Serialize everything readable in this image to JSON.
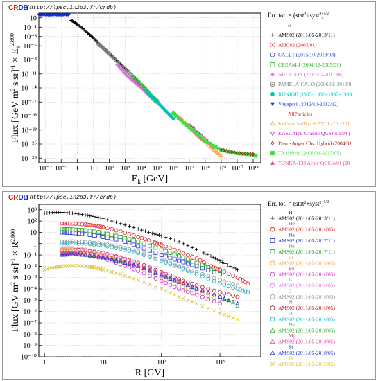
{
  "header": {
    "logo_cr": "CR",
    "logo_db": "DB",
    "url": "(http://lpsc.in2p3.fr/crdb)"
  },
  "colors": {
    "logo_cr": "#d42020",
    "logo_db": "#1f3fbf"
  },
  "chart_data": [
    {
      "type": "scatter",
      "xlabel": "E_k [GeV]",
      "ylabel": "Flux [GeV m^2 s sr]^-1 × E_k^2.800",
      "xscale": "log",
      "yscale": "log",
      "xlim": [
        0.004,
        300000000000
      ],
      "ylim": [
        1e-30,
        100
      ],
      "x_ticks": [
        "10⁻²",
        "10⁻¹",
        "1",
        "10",
        "10²",
        "10³",
        "10⁴",
        "10⁵",
        "10⁶",
        "10⁷",
        "10⁸",
        "10⁹",
        "10¹⁰",
        "10¹¹"
      ],
      "y_ticks": [
        "10",
        "10⁻¹",
        "10⁻³",
        "10⁻⁵",
        "10⁻⁸",
        "10⁻¹¹",
        "10⁻¹⁴",
        "10⁻¹⁷",
        "10⁻²⁰",
        "10⁻²³",
        "10⁻²⁶",
        "10⁻²⁹"
      ],
      "legend_header": "Err. tot. = (stat²+syst²)^1/2",
      "legend": [
        {
          "kind": "group",
          "name": "H",
          "color": "#000000"
        },
        {
          "kind": "series",
          "name": "AMS02 (2011/05-2013/11)",
          "symbol": "+",
          "color": "#000000"
        },
        {
          "kind": "series",
          "name": "ATIC02 (2003/01)",
          "symbol": "x",
          "color": "#e03030"
        },
        {
          "kind": "series",
          "name": "CALET (2015/10-2018/08)",
          "symbol": "circle",
          "color": "#2040d0"
        },
        {
          "kind": "series",
          "name": "CREAM-I (2004/12-2005/01)",
          "symbol": "square",
          "color": "#20b020"
        },
        {
          "kind": "series",
          "name": "NUCLEON (2015/07-2017/06)",
          "symbol": "star",
          "color": "#e060e0"
        },
        {
          "kind": "series",
          "name": "PAMELA-CALO (2006/06-2010/0",
          "symbol": "circle-cross",
          "color": "#808080"
        },
        {
          "kind": "series",
          "name": "RUNJOB (1995+1996+1997+1999",
          "symbol": "disc",
          "color": "#00c0c0"
        },
        {
          "kind": "series",
          "name": "Voyager1 (2012/10-2012/12)",
          "symbol": "triangle-down-filled",
          "color": "#1030d0"
        },
        {
          "kind": "group",
          "name": "AllParticles",
          "color": "#e03030"
        },
        {
          "kind": "series",
          "name": "IceCube IceTop SIBYLL-2.1 (201",
          "symbol": "triangle",
          "color": "#f0a040"
        },
        {
          "kind": "series",
          "name": "KASCADE-Grande QGSJetII.04 (",
          "symbol": "triangle-down",
          "color": "#c020c0"
        },
        {
          "kind": "series",
          "name": "Pierre Auger Obs. Hybrid (2004/01",
          "symbol": "diamond",
          "color": "#a01010"
        },
        {
          "kind": "series",
          "name": "TA Hybrid (2008/01-2015/05)",
          "symbol": "square-filled",
          "color": "#40e040"
        },
        {
          "kind": "series",
          "name": "TUNKA-133 Array QGSJet01 (20",
          "symbol": "triangle-filled",
          "color": "#f04080"
        }
      ],
      "series": [
        {
          "name": "Voyager1 (2012/10-2012/12)",
          "x": [
            0.004,
            0.006,
            0.01,
            0.015,
            0.02,
            0.03,
            0.05,
            0.08,
            0.12,
            0.2,
            0.3
          ],
          "y": [
            40,
            40,
            40,
            40,
            40,
            40,
            40,
            40,
            40,
            40,
            40
          ]
        },
        {
          "name": "AMS02 (2011/05-2013/11)",
          "x": [
            0.4,
            0.7,
            1,
            2,
            4,
            7,
            10,
            20,
            40,
            70,
            100,
            200,
            400,
            700,
            1000,
            1500
          ],
          "y": [
            3,
            1,
            0.4,
            0.07,
            0.008,
            0.0015,
            0.0005,
            5e-05,
            5e-06,
            1e-06,
            3e-07,
            3e-08,
            3e-09,
            5e-10,
            1.5e-10,
            5e-11
          ]
        },
        {
          "name": "PAMELA-CALO (2006/06-2010/0",
          "x": [
            20,
            50,
            100,
            300,
            1000,
            3000,
            8000
          ],
          "y": [
            3e-05,
            2e-06,
            2e-07,
            6e-09,
            1e-10,
            3e-12,
            1e-13
          ]
        },
        {
          "name": "CREAM-I (2004/12-2005/01)",
          "x": [
            3000,
            8000,
            20000,
            50000,
            100000
          ],
          "y": [
            2e-12,
            8e-14,
            3e-15,
            1e-16,
            1.2e-17
          ]
        },
        {
          "name": "NUCLEON (2015/07-2017/06)",
          "x": [
            300,
            1000,
            3000,
            10000,
            30000,
            100000
          ],
          "y": [
            1e-09,
            1e-11,
            3e-13,
            1e-14,
            3e-16,
            1e-17
          ]
        },
        {
          "name": "RUNJOB (1995+1996+1997+1999",
          "x": [
            20000,
            50000,
            100000,
            300000,
            1000000
          ],
          "y": [
            3e-15,
            1e-16,
            1e-17,
            2e-19,
            3e-21
          ]
        },
        {
          "name": "KASCADE-Grande QGSJetII.04 (",
          "x": [
            10000000,
            30000000,
            100000000,
            300000000
          ],
          "y": [
            1e-22,
            3e-24,
            8e-26,
            2e-27
          ]
        },
        {
          "name": "TUNKA-133 Array QGSJet01 (20",
          "x": [
            1000000,
            3000000,
            10000000,
            30000000,
            100000000
          ],
          "y": [
            1e-19,
            2e-21,
            5e-23,
            1e-24,
            3e-26
          ]
        },
        {
          "name": "IceCube IceTop SIBYLL-2.1 (201",
          "x": [
            3000000,
            10000000,
            30000000,
            100000000,
            300000000,
            1000000000
          ],
          "y": [
            3e-21,
            6e-23,
            1.5e-24,
            4e-26,
            1e-27,
            3e-29
          ]
        },
        {
          "name": "TA Hybrid (2008/01-2015/05)",
          "x": [
            1000000,
            10000000,
            100000000,
            1000000000,
            10000000000,
            100000000000,
            150000000000
          ],
          "y": [
            3e-20,
            4e-23,
            5e-26,
            5e-28,
            1e-28,
            5e-29,
            3e-29
          ]
        },
        {
          "name": "Pierre Auger Obs. Hybrid (2004/01",
          "x": [
            1000000000,
            10000000000,
            100000000000
          ],
          "y": [
            6e-28,
            1.2e-28,
            7e-29
          ]
        }
      ]
    },
    {
      "type": "scatter",
      "xlabel": "R [GV]",
      "ylabel": "Flux [GV m^2 s sr]^-1 × R^2.800",
      "xscale": "log",
      "yscale": "log",
      "xlim": [
        0.8,
        5000
      ],
      "ylim": [
        1e-10,
        3000
      ],
      "x_ticks": [
        "1",
        "10",
        "10²",
        "10³"
      ],
      "y_ticks": [
        "10³",
        "10²",
        "10",
        "1",
        "10⁻¹",
        "10⁻²",
        "10⁻³",
        "10⁻⁴",
        "10⁻⁵",
        "10⁻⁶",
        "10⁻⁷",
        "10⁻⁸",
        "10⁻⁹",
        "10⁻¹⁰"
      ],
      "legend_header": "Err. tot. = (stat²+syst²)^1/2",
      "legend": [
        {
          "group": "H",
          "name": "AMS02 (2011/05-2013/11)",
          "symbol": "+",
          "color": "#000000"
        },
        {
          "group": "He",
          "name": "AMS02 (2011/05-2016/05)",
          "symbol": "circle",
          "color": "#e02020"
        },
        {
          "group": "He",
          "name": "AMS02 (2011/05-2017/11)",
          "symbol": "square",
          "color": "#2030e0"
        },
        {
          "group": "He",
          "name": "AMS02 (2011/05-2017/11)",
          "symbol": "square",
          "color": "#20a020"
        },
        {
          "group": "Li",
          "name": "AMS02 (2011/05-2016/05)",
          "symbol": "circle",
          "color": "#f0a040"
        },
        {
          "group": "Be",
          "name": "AMS02 (2011/05-2016/05)",
          "symbol": "circle",
          "color": "#d020d0"
        },
        {
          "group": "B",
          "name": "AMS02 (2011/05-2016/05)",
          "symbol": "circle",
          "color": "#e070e0"
        },
        {
          "group": "C",
          "name": "AMS02 (2011/05-2016/05)",
          "symbol": "circle",
          "color": "#909090"
        },
        {
          "group": "N",
          "name": "AMS02 (2011/05-2016/05)",
          "symbol": "circle",
          "color": "#b01010"
        },
        {
          "group": "O",
          "name": "AMS02 (2011/05-2016/05)",
          "symbol": "circle",
          "color": "#10b0c0"
        },
        {
          "group": "Ne",
          "name": "AMS02 (2011/05-2018/05)",
          "symbol": "triangle",
          "color": "#20b020"
        },
        {
          "group": "Mg",
          "name": "AMS02 (2011/05-2018/05)",
          "symbol": "triangle",
          "color": "#e040a0"
        },
        {
          "group": "Si",
          "name": "AMS02 (2011/05-2018/05)",
          "symbol": "triangle",
          "color": "#2030d0"
        },
        {
          "group": "Fe",
          "name": "AMS02 (2011/05-2015/05)",
          "symbol": "x",
          "color": "#d8c020"
        }
      ],
      "series": [
        {
          "name": "H",
          "x": [
            1,
            1.5,
            2,
            3,
            5,
            7,
            10,
            20,
            40,
            70,
            100,
            200,
            400,
            700,
            1000,
            1500,
            2000
          ],
          "y": [
            500,
            600,
            600,
            500,
            350,
            250,
            170,
            60,
            20,
            8,
            5,
            1.5,
            0.3,
            0.08,
            0.03,
            0.01,
            0.005
          ]
        },
        {
          "name": "He (red)",
          "x": [
            2,
            3,
            5,
            7,
            10,
            20,
            40,
            70,
            100,
            200,
            400,
            700,
            1000,
            2000,
            3000
          ],
          "y": [
            60,
            60,
            50,
            40,
            30,
            12,
            4,
            1.5,
            0.8,
            0.2,
            0.05,
            0.01,
            0.005,
            0.001,
            0.0003
          ]
        },
        {
          "name": "He (blue)",
          "x": [
            2,
            3,
            5,
            10,
            20,
            40,
            100,
            200,
            400,
            1000
          ],
          "y": [
            10,
            9,
            7,
            4,
            2,
            0.6,
            0.1,
            0.03,
            0.01,
            0.002
          ]
        },
        {
          "name": "He (green)",
          "x": [
            2,
            3,
            5,
            10,
            20,
            40,
            100,
            200,
            400,
            1000
          ],
          "y": [
            20,
            18,
            15,
            9,
            4,
            1.5,
            0.3,
            0.08,
            0.02,
            0.004
          ]
        },
        {
          "name": "C",
          "x": [
            2,
            3,
            5,
            10,
            20,
            40,
            100,
            200,
            400,
            1000,
            2000
          ],
          "y": [
            1.5,
            1.6,
            1.4,
            1,
            0.5,
            0.2,
            0.04,
            0.01,
            0.003,
            0.0006,
            0.0002
          ]
        },
        {
          "name": "O",
          "x": [
            2,
            3,
            5,
            10,
            20,
            40,
            100,
            200,
            400,
            1000,
            2000,
            3000
          ],
          "y": [
            1,
            1.1,
            1,
            0.7,
            0.35,
            0.15,
            0.03,
            0.008,
            0.002,
            0.0003,
            0.0001,
            5e-05
          ]
        },
        {
          "name": "N",
          "x": [
            2,
            3,
            5,
            10,
            20,
            40,
            100,
            200,
            400,
            1000,
            2000
          ],
          "y": [
            0.3,
            0.3,
            0.25,
            0.15,
            0.06,
            0.02,
            0.003,
            0.0007,
            0.0002,
            5e-05,
            2e-05
          ]
        },
        {
          "name": "B",
          "x": [
            2,
            3,
            5,
            10,
            20,
            40,
            100,
            200,
            400,
            1000
          ],
          "y": [
            0.4,
            0.4,
            0.3,
            0.15,
            0.05,
            0.015,
            0.002,
            0.0004,
            0.0001,
            2e-05
          ]
        },
        {
          "name": "Li",
          "x": [
            2,
            3,
            5,
            10,
            20,
            40,
            100,
            200,
            400,
            1000
          ],
          "y": [
            0.3,
            0.3,
            0.2,
            0.1,
            0.03,
            0.008,
            0.001,
            0.0002,
            5e-05,
            1e-05
          ]
        },
        {
          "name": "Be",
          "x": [
            2,
            3,
            5,
            10,
            20,
            40,
            100,
            200,
            400,
            1000
          ],
          "y": [
            0.15,
            0.15,
            0.1,
            0.05,
            0.015,
            0.004,
            0.0005,
            0.0001,
            3e-05,
            5e-06
          ]
        },
        {
          "name": "Ne",
          "x": [
            2,
            3,
            5,
            10,
            20,
            40,
            100,
            200,
            400,
            1000,
            2000
          ],
          "y": [
            0.12,
            0.13,
            0.11,
            0.07,
            0.03,
            0.012,
            0.002,
            0.0005,
            0.0001,
            2e-05,
            3e-06
          ]
        },
        {
          "name": "Mg",
          "x": [
            2,
            3,
            5,
            10,
            20,
            40,
            100,
            200,
            400,
            1000,
            2000
          ],
          "y": [
            0.15,
            0.16,
            0.13,
            0.08,
            0.035,
            0.013,
            0.002,
            0.0005,
            0.00012,
            2e-05,
            5e-06
          ]
        },
        {
          "name": "Si",
          "x": [
            2,
            3,
            5,
            10,
            20,
            40,
            100,
            200,
            400,
            1000,
            2000
          ],
          "y": [
            0.1,
            0.11,
            0.1,
            0.06,
            0.025,
            0.01,
            0.0015,
            0.0004,
            0.0001,
            2e-05,
            5e-06
          ]
        },
        {
          "name": "Fe",
          "x": [
            1,
            1.5,
            2,
            3,
            5,
            7,
            10,
            20,
            40,
            100,
            200,
            400,
            1000,
            2000
          ],
          "y": [
            0.005,
            0.008,
            0.01,
            0.012,
            0.01,
            0.008,
            0.005,
            0.002,
            0.0006,
            0.0001,
            2e-05,
            5e-06,
            7e-07,
            2e-07
          ]
        }
      ]
    }
  ]
}
